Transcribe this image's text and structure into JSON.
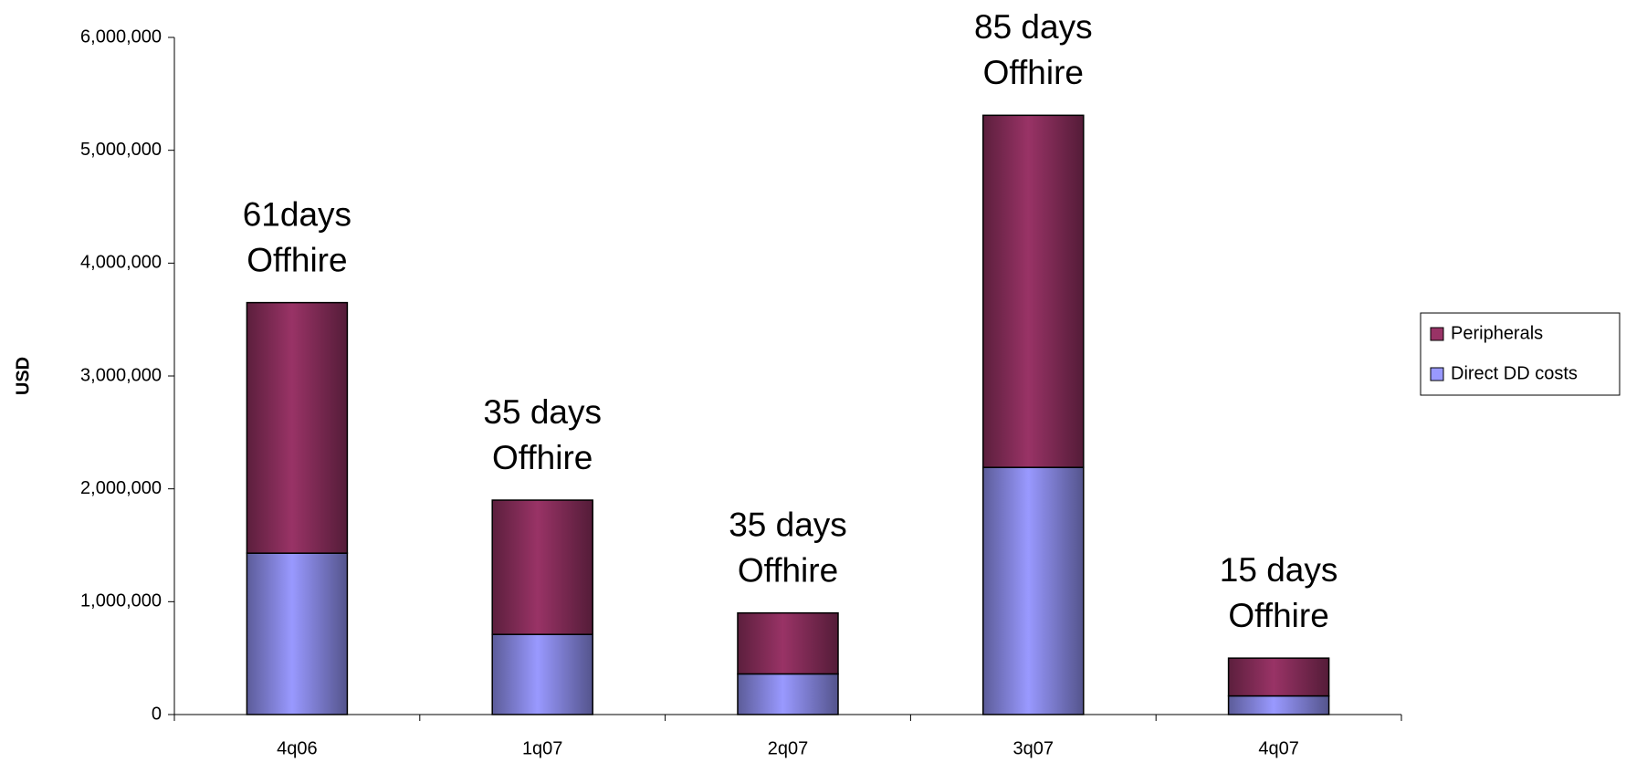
{
  "chart_data": {
    "type": "stacked-bar",
    "y_label": "USD",
    "categories": [
      "4q06",
      "1q07",
      "2q07",
      "3q07",
      "4q07"
    ],
    "series": [
      {
        "name": "Direct DD costs",
        "color": "#9999ff",
        "values": [
          1430000,
          710000,
          360000,
          2190000,
          165000
        ]
      },
      {
        "name": "Peripherals",
        "color": "#993366",
        "values": [
          2220000,
          1190000,
          540000,
          3120000,
          335000
        ]
      }
    ],
    "annotations": [
      [
        "61days",
        "Offhire"
      ],
      [
        "35 days",
        "Offhire"
      ],
      [
        "35 days",
        "Offhire"
      ],
      [
        "85 days",
        "Offhire"
      ],
      [
        "15 days",
        "Offhire"
      ]
    ],
    "ylim": [
      0,
      6000000
    ],
    "yticks": [
      0,
      {
        "value": 1000000,
        "label": "1,000,000"
      },
      {
        "value": 2000000,
        "label": "2,000,000"
      },
      {
        "value": 3000000,
        "label": "3,000,000"
      },
      {
        "value": 4000000,
        "label": "4,000,000"
      },
      {
        "value": 5000000,
        "label": "5,000,000"
      },
      {
        "value": 6000000,
        "label": "6,000,000"
      }
    ],
    "grid": false,
    "legend": "right"
  }
}
